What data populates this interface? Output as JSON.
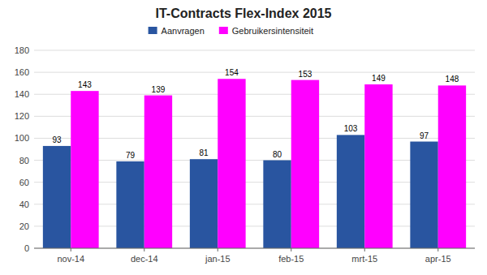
{
  "chart_data": {
    "type": "bar",
    "title": "IT-Contracts Flex-Index 2015",
    "categories": [
      "nov-14",
      "dec-14",
      "jan-15",
      "feb-15",
      "mrt-15",
      "apr-15"
    ],
    "series": [
      {
        "name": "Aanvragen",
        "color": "#2955a0",
        "values": [
          93,
          79,
          81,
          80,
          103,
          97
        ]
      },
      {
        "name": "Gebruikersintensiteit",
        "color": "#ff00ff",
        "values": [
          143,
          139,
          154,
          153,
          149,
          148
        ]
      }
    ],
    "ylim": [
      0,
      180
    ],
    "yticks": [
      0,
      20,
      40,
      60,
      80,
      100,
      120,
      140,
      160,
      180
    ],
    "grid": true,
    "data_labels": true,
    "legend": "top"
  }
}
